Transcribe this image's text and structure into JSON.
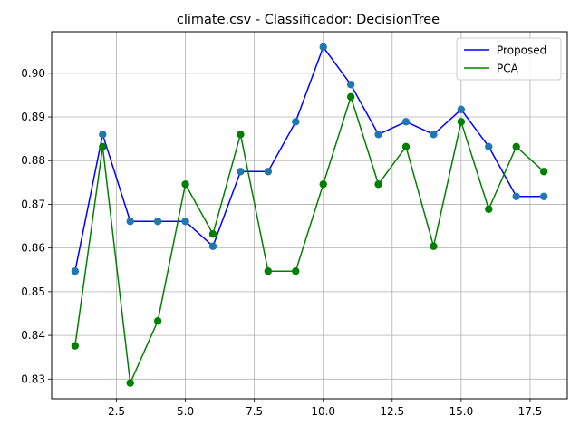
{
  "chart_data": {
    "type": "line",
    "title": "climate.csv - Classificador: DecisionTree",
    "xlabel": "",
    "ylabel": "",
    "x": [
      1,
      2,
      3,
      4,
      5,
      6,
      7,
      8,
      9,
      10,
      11,
      12,
      13,
      14,
      15,
      16,
      17,
      18
    ],
    "xlim": [
      0.15,
      18.85
    ],
    "ylim": [
      0.8255,
      0.9095
    ],
    "xticks": [
      2.5,
      5.0,
      7.5,
      10.0,
      12.5,
      15.0,
      17.5
    ],
    "xtick_labels": [
      "2.5",
      "5.0",
      "7.5",
      "10.0",
      "12.5",
      "15.0",
      "17.5"
    ],
    "yticks": [
      0.83,
      0.84,
      0.85,
      0.86,
      0.87,
      0.88,
      0.89,
      0.9
    ],
    "ytick_labels": [
      "0.83",
      "0.84",
      "0.85",
      "0.86",
      "0.87",
      "0.88",
      "0.89",
      "0.90"
    ],
    "grid": true,
    "legend_position": "top-right",
    "series": [
      {
        "name": "Proposed",
        "color": "#0000ff",
        "marker_color": "#1f77b4",
        "values": [
          0.8547,
          0.886,
          0.8661,
          0.8661,
          0.8661,
          0.8604,
          0.8775,
          0.8775,
          0.8889,
          0.906,
          0.8974,
          0.886,
          0.8889,
          0.886,
          0.8917,
          0.8832,
          0.8718,
          0.8718
        ]
      },
      {
        "name": "PCA",
        "color": "#008000",
        "marker_color": "#008000",
        "values": [
          0.8376,
          0.8832,
          0.8291,
          0.8433,
          0.8746,
          0.8632,
          0.886,
          0.8547,
          0.8547,
          0.8746,
          0.8946,
          0.8746,
          0.8832,
          0.8604,
          0.8889,
          0.8689,
          0.8832,
          0.8775
        ]
      }
    ]
  }
}
